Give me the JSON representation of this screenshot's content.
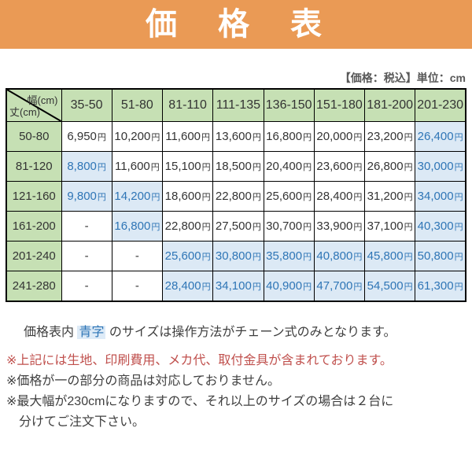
{
  "title": "価　格　表",
  "tax_note": "【価格：税込】単位：cm",
  "table": {
    "corner": {
      "top": "幅(cm)",
      "bottom": "丈(cm)"
    },
    "columns": [
      "35-50",
      "51-80",
      "81-110",
      "111-135",
      "136-150",
      "151-180",
      "181-200",
      "201-230"
    ],
    "unit": "円",
    "rows": [
      {
        "label": "50-80",
        "cells": [
          {
            "v": "6,950"
          },
          {
            "v": "10,200"
          },
          {
            "v": "11,600"
          },
          {
            "v": "13,600"
          },
          {
            "v": "16,800"
          },
          {
            "v": "20,000"
          },
          {
            "v": "23,200"
          },
          {
            "v": "26,400",
            "blue": true
          }
        ]
      },
      {
        "label": "81-120",
        "cells": [
          {
            "v": "8,800",
            "blue": true
          },
          {
            "v": "11,600"
          },
          {
            "v": "15,100"
          },
          {
            "v": "18,500"
          },
          {
            "v": "20,400"
          },
          {
            "v": "23,600"
          },
          {
            "v": "26,800"
          },
          {
            "v": "30,000",
            "blue": true
          }
        ]
      },
      {
        "label": "121-160",
        "cells": [
          {
            "v": "9,800",
            "blue": true
          },
          {
            "v": "14,200",
            "blue": true
          },
          {
            "v": "18,600"
          },
          {
            "v": "22,800"
          },
          {
            "v": "25,600"
          },
          {
            "v": "28,400"
          },
          {
            "v": "31,200"
          },
          {
            "v": "34,000",
            "blue": true
          }
        ]
      },
      {
        "label": "161-200",
        "cells": [
          {
            "v": "-"
          },
          {
            "v": "16,800",
            "blue": true
          },
          {
            "v": "22,800"
          },
          {
            "v": "27,500"
          },
          {
            "v": "30,700"
          },
          {
            "v": "33,900"
          },
          {
            "v": "37,100"
          },
          {
            "v": "40,300",
            "blue": true
          }
        ]
      },
      {
        "label": "201-240",
        "cells": [
          {
            "v": "-"
          },
          {
            "v": "-"
          },
          {
            "v": "25,600",
            "blue": true
          },
          {
            "v": "30,800",
            "blue": true
          },
          {
            "v": "35,800",
            "blue": true
          },
          {
            "v": "40,800",
            "blue": true
          },
          {
            "v": "45,800",
            "blue": true
          },
          {
            "v": "50,800",
            "blue": true
          }
        ]
      },
      {
        "label": "241-280",
        "cells": [
          {
            "v": "-"
          },
          {
            "v": "-"
          },
          {
            "v": "28,400",
            "blue": true
          },
          {
            "v": "34,100",
            "blue": true
          },
          {
            "v": "40,900",
            "blue": true
          },
          {
            "v": "47,700",
            "blue": true
          },
          {
            "v": "54,500",
            "blue": true
          },
          {
            "v": "61,300",
            "blue": true
          }
        ]
      }
    ]
  },
  "notes": {
    "blue_note": {
      "pre": "価格表内 ",
      "highlight": "青字",
      "post": " のサイズは操作方法がチェーン式のみとなります。"
    },
    "red_note": "※上記には生地、印刷費用、メカ代、取付金具が含まれております。",
    "dash_note": "※価格が一の部分の商品は対応しておりません。",
    "max_note_line1": "※最大幅が230cmになりますので、それ以上のサイズの場合は２台に",
    "max_note_line2": "分けてご注文下さい。"
  },
  "colors": {
    "header_orange": "#EA9A55",
    "cell_green": "#C6E0B4",
    "cell_blue_bg": "#DCE9F5",
    "blue_text": "#2E75B6",
    "red_text": "#C0504D"
  }
}
